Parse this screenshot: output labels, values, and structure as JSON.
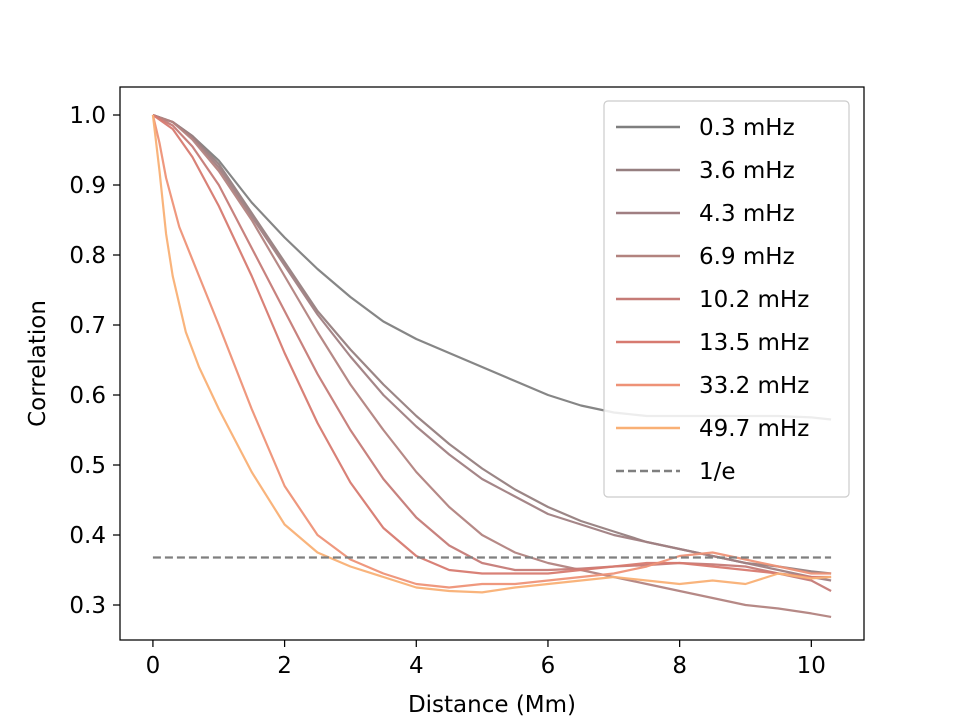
{
  "chart_data": {
    "type": "line",
    "title": "",
    "xlabel": "Distance (Mm)",
    "ylabel": "Correlation",
    "xlim": [
      -0.5,
      10.8
    ],
    "ylim": [
      0.25,
      1.04
    ],
    "xticks": [
      0,
      2,
      4,
      6,
      8,
      10
    ],
    "yticks": [
      0.3,
      0.4,
      0.5,
      0.6,
      0.7,
      0.8,
      0.9,
      1.0
    ],
    "xtick_labels": [
      "0",
      "2",
      "4",
      "6",
      "8",
      "10"
    ],
    "ytick_labels": [
      "0.3",
      "0.4",
      "0.5",
      "0.6",
      "0.7",
      "0.8",
      "0.9",
      "1.0"
    ],
    "grid": false,
    "legend_position": "upper right",
    "series": [
      {
        "name": "0.3 mHz",
        "color": "#7f7f7f",
        "x": [
          0,
          0.3,
          0.6,
          1.0,
          1.5,
          2.0,
          2.5,
          3.0,
          3.5,
          4.0,
          4.5,
          5.0,
          5.5,
          6.0,
          6.5,
          7.0,
          7.5,
          8.0,
          8.5,
          9.0,
          9.5,
          10.0,
          10.3
        ],
        "y": [
          1.0,
          0.99,
          0.97,
          0.935,
          0.875,
          0.825,
          0.78,
          0.74,
          0.705,
          0.68,
          0.66,
          0.64,
          0.62,
          0.6,
          0.585,
          0.575,
          0.57,
          0.57,
          0.57,
          0.57,
          0.57,
          0.568,
          0.565
        ]
      },
      {
        "name": "3.6 mHz",
        "color": "#967f80",
        "x": [
          0,
          0.3,
          0.6,
          1.0,
          1.5,
          2.0,
          2.5,
          3.0,
          3.5,
          4.0,
          4.5,
          5.0,
          5.5,
          6.0,
          6.5,
          7.0,
          7.5,
          8.0,
          8.5,
          9.0,
          9.5,
          10.0,
          10.3
        ],
        "y": [
          1.0,
          0.99,
          0.97,
          0.93,
          0.86,
          0.79,
          0.72,
          0.665,
          0.615,
          0.57,
          0.53,
          0.495,
          0.465,
          0.44,
          0.42,
          0.405,
          0.39,
          0.38,
          0.37,
          0.36,
          0.355,
          0.348,
          0.345
        ]
      },
      {
        "name": "4.3 mHz",
        "color": "#a07f82",
        "x": [
          0,
          0.3,
          0.6,
          1.0,
          1.5,
          2.0,
          2.5,
          3.0,
          3.5,
          4.0,
          4.5,
          5.0,
          5.5,
          6.0,
          6.5,
          7.0,
          7.5,
          8.0,
          8.5,
          9.0,
          9.5,
          10.0,
          10.3
        ],
        "y": [
          1.0,
          0.99,
          0.968,
          0.925,
          0.855,
          0.785,
          0.715,
          0.655,
          0.6,
          0.555,
          0.515,
          0.48,
          0.455,
          0.43,
          0.415,
          0.4,
          0.39,
          0.38,
          0.37,
          0.36,
          0.35,
          0.34,
          0.335
        ]
      },
      {
        "name": "6.9 mHz",
        "color": "#b2837f",
        "x": [
          0,
          0.3,
          0.6,
          1.0,
          1.5,
          2.0,
          2.5,
          3.0,
          3.5,
          4.0,
          4.5,
          5.0,
          5.5,
          6.0,
          6.5,
          7.0,
          7.5,
          8.0,
          8.5,
          9.0,
          9.5,
          10.0,
          10.3
        ],
        "y": [
          1.0,
          0.99,
          0.965,
          0.92,
          0.85,
          0.77,
          0.69,
          0.615,
          0.55,
          0.49,
          0.44,
          0.4,
          0.375,
          0.36,
          0.35,
          0.34,
          0.33,
          0.32,
          0.31,
          0.3,
          0.295,
          0.288,
          0.283
        ]
      },
      {
        "name": "10.2 mHz",
        "color": "#c57b77",
        "x": [
          0,
          0.3,
          0.6,
          1.0,
          1.5,
          2.0,
          2.5,
          3.0,
          3.5,
          4.0,
          4.5,
          5.0,
          5.5,
          6.0,
          6.5,
          7.0,
          7.5,
          8.0,
          8.5,
          9.0,
          9.5,
          10.0,
          10.3
        ],
        "y": [
          1.0,
          0.985,
          0.955,
          0.9,
          0.81,
          0.72,
          0.63,
          0.55,
          0.48,
          0.425,
          0.385,
          0.36,
          0.35,
          0.35,
          0.352,
          0.355,
          0.357,
          0.36,
          0.358,
          0.355,
          0.345,
          0.335,
          0.32
        ]
      },
      {
        "name": "13.5 mHz",
        "color": "#d77a70",
        "x": [
          0,
          0.3,
          0.6,
          1.0,
          1.5,
          2.0,
          2.5,
          3.0,
          3.5,
          4.0,
          4.5,
          5.0,
          5.5,
          6.0,
          6.5,
          7.0,
          7.5,
          8.0,
          8.5,
          9.0,
          9.5,
          10.0,
          10.3
        ],
        "y": [
          1.0,
          0.98,
          0.94,
          0.87,
          0.77,
          0.66,
          0.56,
          0.475,
          0.41,
          0.37,
          0.35,
          0.345,
          0.345,
          0.345,
          0.35,
          0.355,
          0.36,
          0.36,
          0.355,
          0.35,
          0.345,
          0.34,
          0.34
        ]
      },
      {
        "name": "33.2 mHz",
        "color": "#ee9277",
        "x": [
          0,
          0.1,
          0.2,
          0.4,
          0.7,
          1.0,
          1.5,
          2.0,
          2.5,
          3.0,
          3.5,
          4.0,
          4.5,
          5.0,
          5.5,
          6.0,
          6.5,
          7.0,
          7.5,
          8.0,
          8.5,
          9.0,
          9.5,
          10.0,
          10.3
        ],
        "y": [
          1.0,
          0.96,
          0.91,
          0.84,
          0.77,
          0.7,
          0.58,
          0.47,
          0.4,
          0.365,
          0.345,
          0.33,
          0.325,
          0.33,
          0.33,
          0.335,
          0.34,
          0.345,
          0.355,
          0.37,
          0.375,
          0.365,
          0.355,
          0.345,
          0.345
        ]
      },
      {
        "name": "49.7 mHz",
        "color": "#f9b075",
        "x": [
          0,
          0.1,
          0.2,
          0.3,
          0.5,
          0.7,
          1.0,
          1.5,
          2.0,
          2.5,
          3.0,
          3.5,
          4.0,
          4.5,
          5.0,
          5.5,
          6.0,
          6.5,
          7.0,
          7.5,
          8.0,
          8.5,
          9.0,
          9.5,
          10.0,
          10.3
        ],
        "y": [
          1.0,
          0.92,
          0.83,
          0.77,
          0.69,
          0.64,
          0.58,
          0.49,
          0.415,
          0.375,
          0.355,
          0.34,
          0.325,
          0.32,
          0.318,
          0.325,
          0.33,
          0.335,
          0.34,
          0.335,
          0.33,
          0.335,
          0.33,
          0.345,
          0.338,
          0.34
        ]
      }
    ],
    "reference_line": {
      "name": "1/e",
      "y": 0.3679,
      "x_start": 0,
      "x_end": 10.3,
      "color": "#7f7f7f",
      "style": "dashed"
    }
  }
}
